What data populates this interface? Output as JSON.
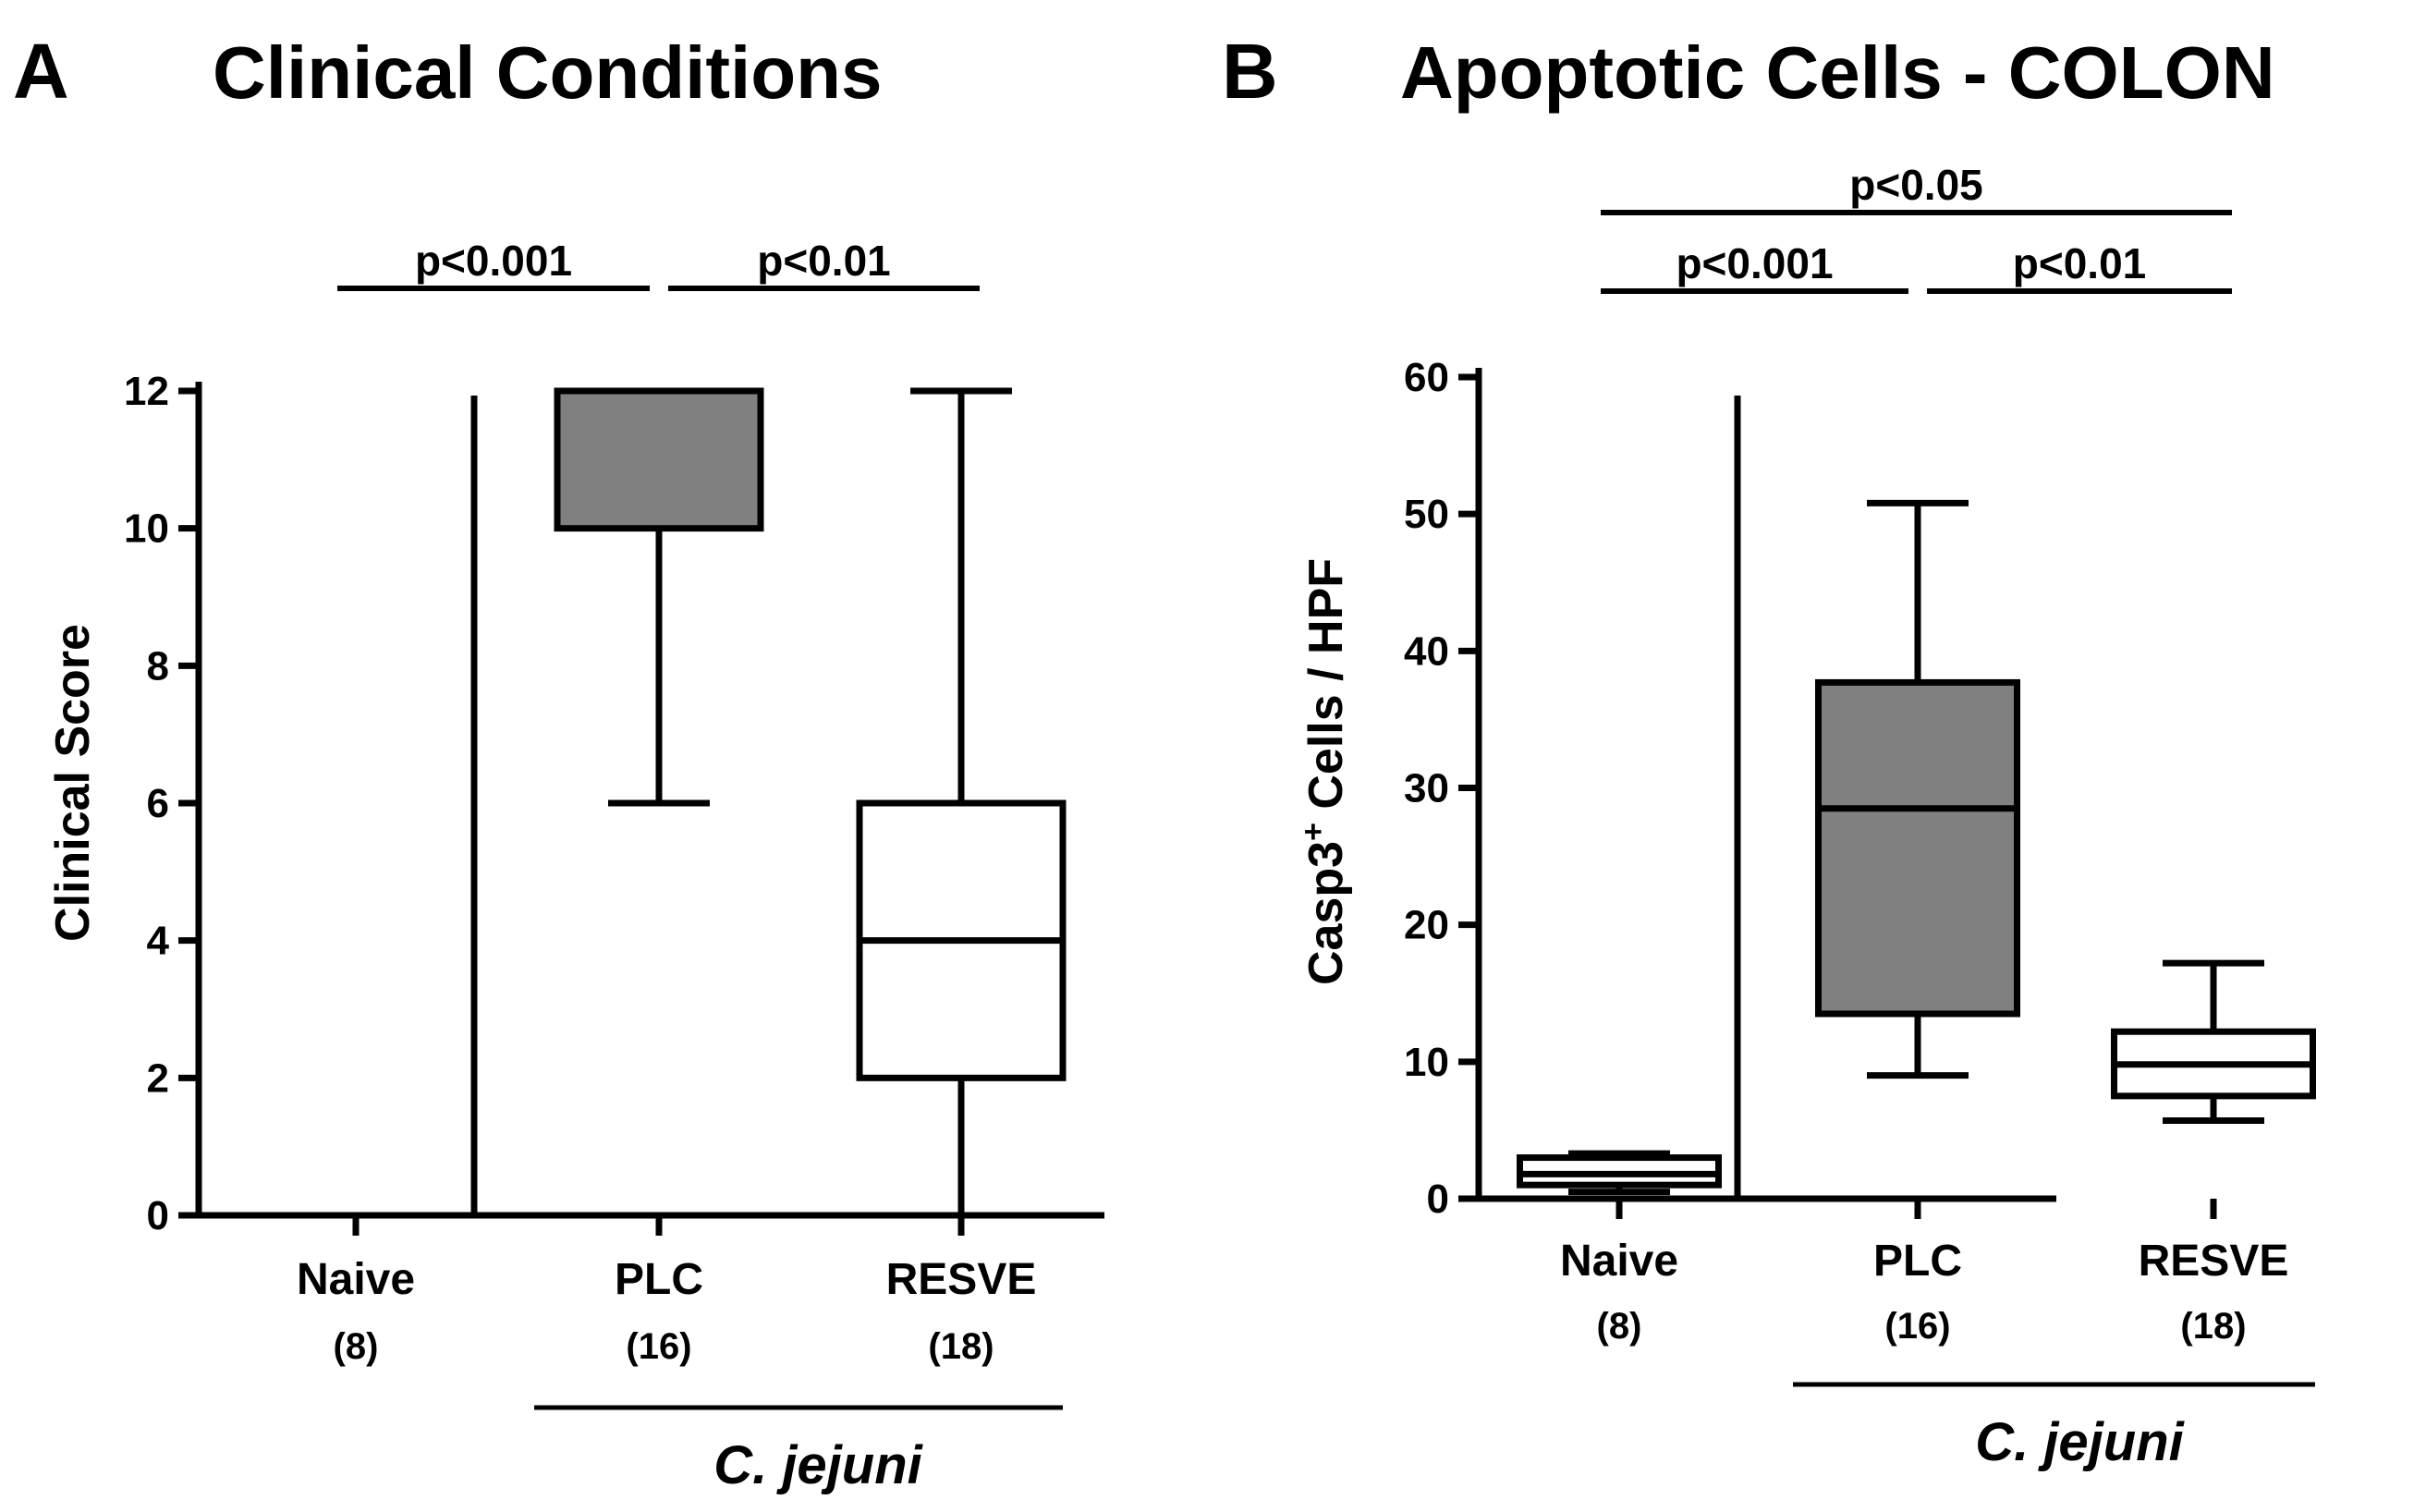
{
  "chart_data": [
    {
      "panel": "A",
      "type": "box",
      "title": "Clinical Conditions",
      "ylabel": "Clinical Score",
      "ylim": [
        0,
        12
      ],
      "yticks": [
        0,
        2,
        4,
        6,
        8,
        10,
        12
      ],
      "categories": [
        "Naive",
        "PLC",
        "RESVE"
      ],
      "n_labels": [
        "(8)",
        "(16)",
        "(18)"
      ],
      "group_label": "C. jejuni",
      "group_members": [
        "PLC",
        "RESVE"
      ],
      "boxes": [
        {
          "name": "Naive",
          "min": 0,
          "q1": 0,
          "median": 0,
          "q3": 0,
          "max": 0,
          "fill": "#ffffff"
        },
        {
          "name": "PLC",
          "min": 6,
          "q1": 10,
          "median": 12,
          "q3": 12,
          "max": 12,
          "fill": "#808080"
        },
        {
          "name": "RESVE",
          "min": 0,
          "q1": 2,
          "median": 4,
          "q3": 6,
          "max": 12,
          "fill": "#ffffff"
        }
      ],
      "significance": [
        {
          "from": "Naive",
          "to": "PLC",
          "label": "p<0.001",
          "level": 1
        },
        {
          "from": "PLC",
          "to": "RESVE",
          "label": "p<0.01",
          "level": 1
        }
      ]
    },
    {
      "panel": "B",
      "type": "box",
      "title": "Apoptotic Cells - COLON",
      "ylabel_main": "Casp3",
      "ylabel_sup": "+",
      "ylabel_rest": " Cells / HPF",
      "ylim": [
        0,
        60
      ],
      "yticks": [
        0,
        10,
        20,
        30,
        40,
        50,
        60
      ],
      "categories": [
        "Naive",
        "PLC",
        "RESVE"
      ],
      "n_labels": [
        "(8)",
        "(16)",
        "(18)"
      ],
      "group_label": "C. jejuni",
      "group_members": [
        "PLC",
        "RESVE"
      ],
      "boxes": [
        {
          "name": "Naive",
          "min": 0.5,
          "q1": 1,
          "median": 1.8,
          "q3": 3,
          "max": 3.3,
          "fill": "#ffffff"
        },
        {
          "name": "PLC",
          "min": 9,
          "q1": 13.5,
          "median": 28.5,
          "q3": 37.7,
          "max": 50.8,
          "fill": "#808080"
        },
        {
          "name": "RESVE",
          "min": 5.7,
          "q1": 7.5,
          "median": 9.8,
          "q3": 12.2,
          "max": 17.2,
          "fill": "#ffffff"
        }
      ],
      "significance": [
        {
          "from": "Naive",
          "to": "PLC",
          "label": "p<0.001",
          "level": 1
        },
        {
          "from": "PLC",
          "to": "RESVE",
          "label": "p<0.01",
          "level": 1
        },
        {
          "from": "Naive",
          "to": "RESVE",
          "label": "p<0.05",
          "level": 2
        }
      ]
    }
  ]
}
